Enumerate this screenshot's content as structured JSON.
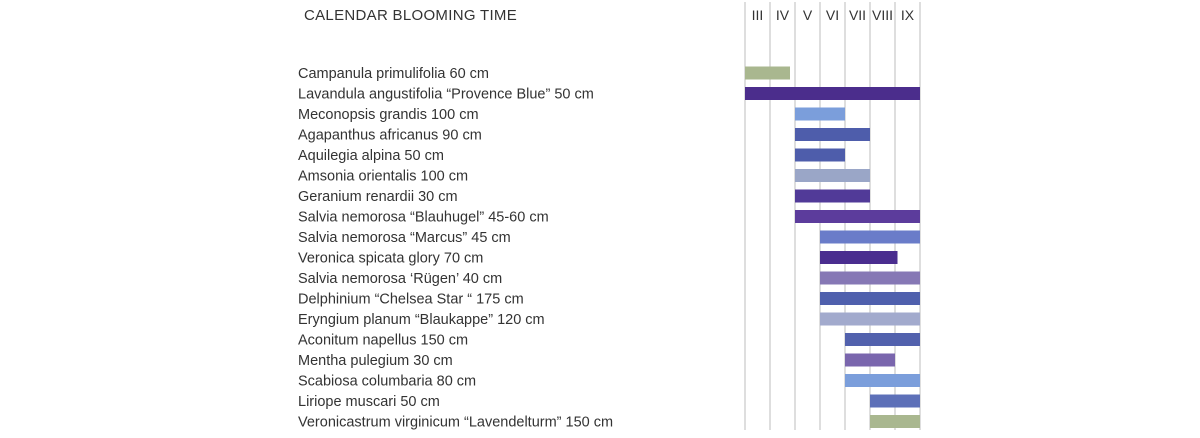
{
  "chart_data": {
    "type": "bar",
    "title": "CALENDAR BLOOMING TIME",
    "months": [
      "III",
      "IV",
      "V",
      "VI",
      "VII",
      "VIII",
      "IX"
    ],
    "series": [
      {
        "label": "Campanula primulifolia 60 cm",
        "start": 0.0,
        "end": 1.8,
        "color": "#a9b78f"
      },
      {
        "label": "Lavandula  angustifolia “Provence Blue”  50 cm",
        "start": 0.0,
        "end": 7.0,
        "color": "#4b2d8c"
      },
      {
        "label": "Meconopsis grandis 100 cm",
        "start": 2.0,
        "end": 4.0,
        "color": "#7b9edb"
      },
      {
        "label": "Agapanthus africanus 90 cm",
        "start": 2.0,
        "end": 5.0,
        "color": "#4e5dab"
      },
      {
        "label": "Aquilegia alpina 50 cm",
        "start": 2.0,
        "end": 4.0,
        "color": "#4e5dab"
      },
      {
        "label": "Amsonia orientalis 100 cm",
        "start": 2.0,
        "end": 5.0,
        "color": "#9aa6c7"
      },
      {
        "label": "Geranium renardii 30 cm",
        "start": 2.0,
        "end": 5.0,
        "color": "#513a98"
      },
      {
        "label": "Salvia nemorosa “Blauhugel”  45-60 cm",
        "start": 2.0,
        "end": 7.0,
        "color": "#5c3c9c"
      },
      {
        "label": "Salvia nemorosa “Marcus”   45 cm",
        "start": 3.0,
        "end": 7.0,
        "color": "#6a7cc9"
      },
      {
        "label": "Veronica spicata glory 70 cm",
        "start": 3.0,
        "end": 6.1,
        "color": "#4a2d8f"
      },
      {
        "label": "Salvia nemorosa ‘Rügen’ 40 cm",
        "start": 3.0,
        "end": 7.0,
        "color": "#8678b5"
      },
      {
        "label": "Delphinium “Chelsea Star “ 175 cm",
        "start": 3.0,
        "end": 7.0,
        "color": "#4f60ad"
      },
      {
        "label": "Eryngium planum “Blaukappe” 120 cm",
        "start": 3.0,
        "end": 7.0,
        "color": "#a2aacd"
      },
      {
        "label": "Aconitum napellus 150 cm",
        "start": 4.0,
        "end": 7.0,
        "color": "#5261ad"
      },
      {
        "label": "Mentha pulegium 30 cm",
        "start": 4.0,
        "end": 6.0,
        "color": "#7a66ad"
      },
      {
        "label": "Scabiosa columbaria 80 cm",
        "start": 4.0,
        "end": 7.0,
        "color": "#7b9edb"
      },
      {
        "label": "Liriope muscari 50 cm",
        "start": 5.0,
        "end": 7.0,
        "color": "#5d70b8"
      },
      {
        "label": "Veronicastrum virginicum “Lavendelturm” 150 cm",
        "start": 5.0,
        "end": 7.0,
        "color": "#a9b78f"
      }
    ]
  }
}
